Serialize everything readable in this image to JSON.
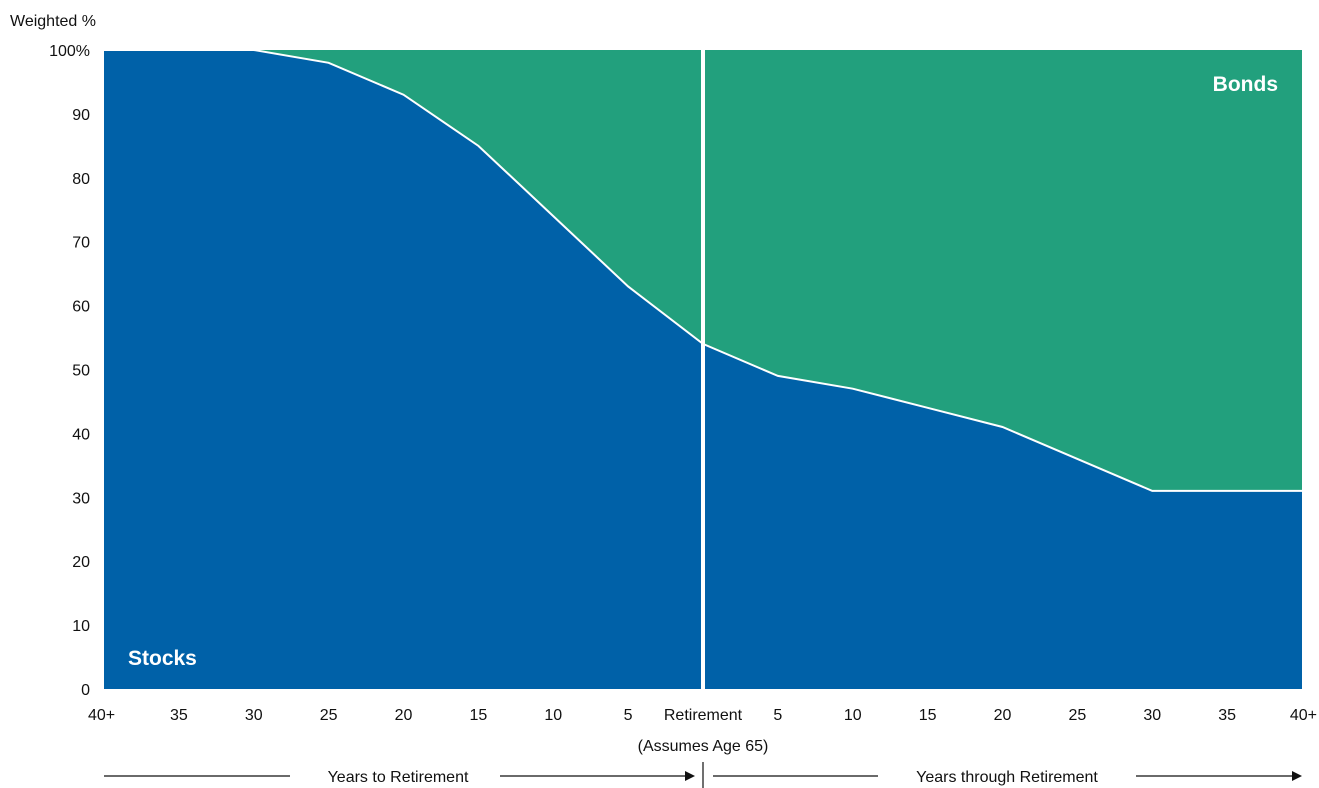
{
  "chart_data": {
    "type": "area",
    "ylabel": "Weighted %",
    "ylim": [
      0,
      100
    ],
    "yticks": [
      {
        "value": 0,
        "label": "0"
      },
      {
        "value": 10,
        "label": "10"
      },
      {
        "value": 20,
        "label": "20"
      },
      {
        "value": 30,
        "label": "30"
      },
      {
        "value": 40,
        "label": "40"
      },
      {
        "value": 50,
        "label": "50"
      },
      {
        "value": 60,
        "label": "60"
      },
      {
        "value": 70,
        "label": "70"
      },
      {
        "value": 80,
        "label": "80"
      },
      {
        "value": 90,
        "label": "90"
      },
      {
        "value": 100,
        "label": "100%"
      }
    ],
    "xticks": [
      {
        "value": -40,
        "label": "40+"
      },
      {
        "value": -35,
        "label": "35"
      },
      {
        "value": -30,
        "label": "30"
      },
      {
        "value": -25,
        "label": "25"
      },
      {
        "value": -20,
        "label": "20"
      },
      {
        "value": -15,
        "label": "15"
      },
      {
        "value": -10,
        "label": "10"
      },
      {
        "value": -5,
        "label": "5"
      },
      {
        "value": 0,
        "label": "Retirement"
      },
      {
        "value": 5,
        "label": "5"
      },
      {
        "value": 10,
        "label": "10"
      },
      {
        "value": 15,
        "label": "15"
      },
      {
        "value": 20,
        "label": "20"
      },
      {
        "value": 25,
        "label": "25"
      },
      {
        "value": 30,
        "label": "30"
      },
      {
        "value": 35,
        "label": "35"
      },
      {
        "value": 40,
        "label": "40+"
      }
    ],
    "retirement_note": "(Assumes Age 65)",
    "x": [
      -40,
      -35,
      -30,
      -25,
      -20,
      -15,
      -10,
      -5,
      0,
      5,
      10,
      15,
      20,
      25,
      30,
      35,
      40
    ],
    "series": [
      {
        "name": "Stocks",
        "color": "#0061a8",
        "values": [
          100,
          100,
          100,
          98,
          93,
          85,
          74,
          63,
          54,
          49,
          47,
          44,
          41,
          36,
          31,
          31,
          31
        ]
      },
      {
        "name": "Bonds",
        "color": "#22a07d",
        "values": [
          0,
          0,
          0,
          2,
          7,
          15,
          26,
          37,
          46,
          51,
          53,
          56,
          59,
          64,
          69,
          69,
          69
        ]
      }
    ],
    "divider_at": 0,
    "axis_captions": {
      "left": "Years to Retirement",
      "right": "Years through Retirement"
    },
    "grid": false,
    "legend": "inline labels"
  }
}
